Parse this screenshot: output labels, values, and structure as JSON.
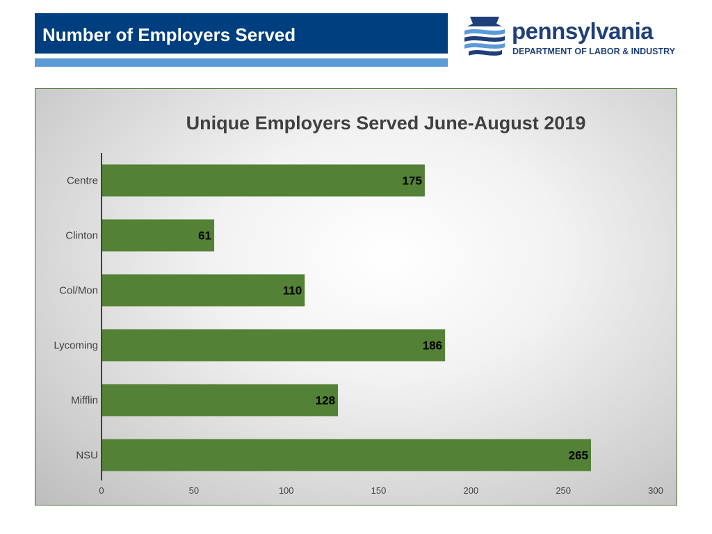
{
  "header": {
    "title": "Number of Employers Served"
  },
  "logo": {
    "icon": "keystone-flag-logo",
    "wordmark": "pennsylvania",
    "department": "DEPARTMENT OF LABOR & INDUSTRY",
    "brand_color": "#1f3f7a"
  },
  "colors": {
    "header_band": "#003f7f",
    "header_rule": "#5b9bd5",
    "bar": "#538135"
  },
  "chart_data": {
    "type": "bar",
    "orientation": "horizontal",
    "title": "Unique Employers Served June-August 2019",
    "categories": [
      "Centre",
      "Clinton",
      "Col/Mon",
      "Lycoming",
      "Mifflin",
      "NSU"
    ],
    "values": [
      175,
      61,
      110,
      186,
      128,
      265
    ],
    "xlim": [
      0,
      300
    ],
    "xticks": [
      0,
      50,
      100,
      150,
      200,
      250,
      300
    ],
    "grid": false,
    "legend": "none",
    "data_labels": true
  }
}
